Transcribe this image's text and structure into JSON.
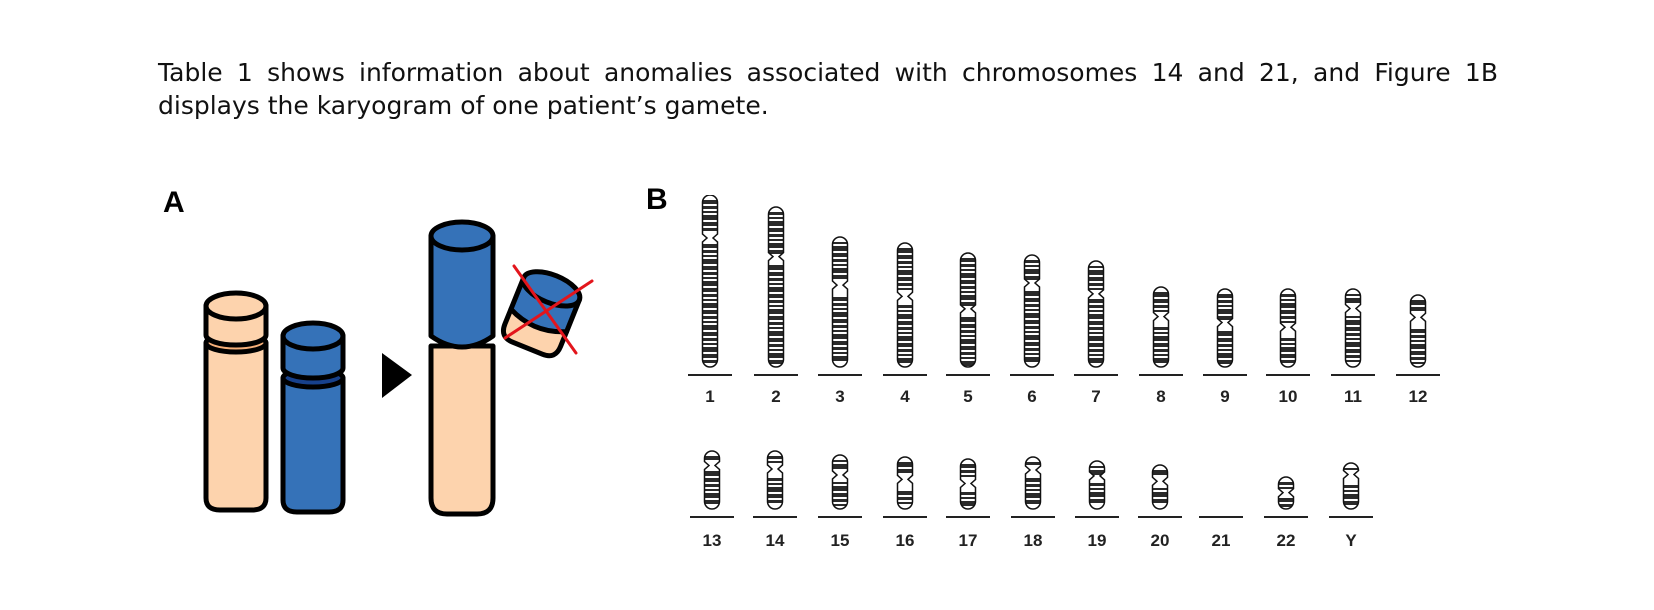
{
  "intro_text": "Table 1 shows information about anomalies associated with chromosomes 14 and 21, and Figure 1B displays the karyogram of one patient’s gamete.",
  "panels": {
    "a_label": "A",
    "b_label": "B"
  },
  "colors": {
    "peach": "#fdd3ad",
    "peach_band": "#f7b07a",
    "blue": "#3572b8",
    "blue_band": "#17418c",
    "cross": "#e3151c",
    "outline": "#000000"
  },
  "icons": [
    "arrow-right-icon",
    "cross-out-icon"
  ],
  "karyogram": {
    "row1": [
      {
        "label": "1"
      },
      {
        "label": "2"
      },
      {
        "label": "3"
      },
      {
        "label": "4"
      },
      {
        "label": "5"
      },
      {
        "label": "6"
      },
      {
        "label": "7"
      },
      {
        "label": "8"
      },
      {
        "label": "9"
      },
      {
        "label": "10"
      },
      {
        "label": "11"
      },
      {
        "label": "12"
      }
    ],
    "row2": [
      {
        "label": "13"
      },
      {
        "label": "14"
      },
      {
        "label": "15"
      },
      {
        "label": "16"
      },
      {
        "label": "17"
      },
      {
        "label": "18"
      },
      {
        "label": "19"
      },
      {
        "label": "20"
      },
      {
        "label": "21",
        "absent": true
      },
      {
        "label": "22"
      },
      {
        "label": "Y"
      }
    ]
  }
}
